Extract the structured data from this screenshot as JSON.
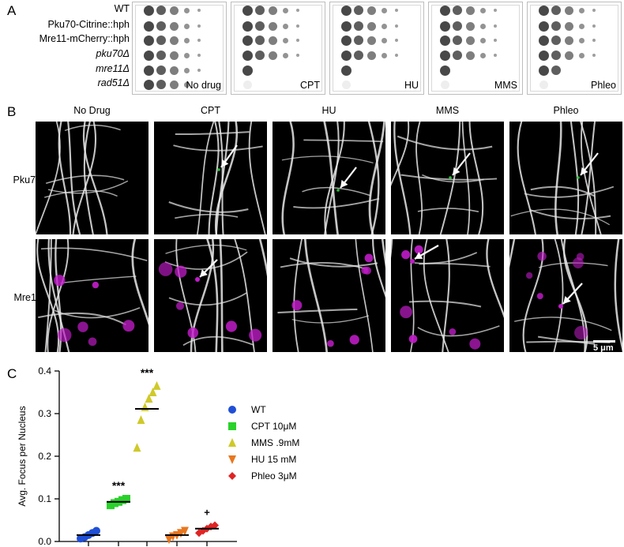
{
  "panels": {
    "a": "A",
    "b": "B",
    "c": "C"
  },
  "panel_a": {
    "strains": [
      {
        "label": "WT",
        "italic": false,
        "growth": [
          5,
          5,
          5,
          5,
          5
        ]
      },
      {
        "label": "Pku70-Citrine::hph",
        "italic": false,
        "growth": [
          5,
          5,
          5,
          5,
          5
        ]
      },
      {
        "label": "Mre11-mCherry::hph",
        "italic": false,
        "growth": [
          5,
          5,
          5,
          5,
          5
        ]
      },
      {
        "label": "pku70Δ",
        "italic": true,
        "growth": [
          5,
          5,
          5,
          5,
          5
        ]
      },
      {
        "label": "mre11Δ",
        "italic": true,
        "growth": [
          5,
          1,
          1,
          1,
          2
        ]
      },
      {
        "label": "rad51Δ",
        "italic": true,
        "growth": [
          4,
          0,
          0,
          0,
          0
        ]
      }
    ],
    "plates": [
      "No drug",
      "CPT",
      "HU",
      "MMS",
      "Phleo"
    ]
  },
  "panel_b": {
    "columns": [
      "No Drug",
      "CPT",
      "HU",
      "MMS",
      "Phleo"
    ],
    "rows": [
      "Pku70",
      "Mre11"
    ],
    "scale_bar": "5 μm",
    "colors": {
      "membrane": "#e8e8e8",
      "pku70": "#22c033",
      "mre11": "#c01cc8",
      "arrow": "#ffffff"
    }
  },
  "chart_data": {
    "type": "scatter",
    "ylabel": "Avg. Focus per Nucleus",
    "xlabel": "",
    "ylim": [
      0,
      0.4
    ],
    "yticks": [
      "0.0",
      "0.1",
      "0.2",
      "0.3",
      "0.4"
    ],
    "series": [
      {
        "name": "WT",
        "color": "#1f4fd6",
        "marker": "circle",
        "values": [
          0.007,
          0.01,
          0.015,
          0.02,
          0.025
        ],
        "mean": 0.015,
        "annotation": ""
      },
      {
        "name": "CPT 10μM",
        "color": "#2ad12a",
        "marker": "square",
        "values": [
          0.085,
          0.09,
          0.093,
          0.097,
          0.1
        ],
        "mean": 0.093,
        "annotation": "***"
      },
      {
        "name": "MMS .9mM",
        "color": "#cfc92a",
        "marker": "triangle-up",
        "values": [
          0.22,
          0.285,
          0.315,
          0.335,
          0.35,
          0.365
        ],
        "mean": 0.311,
        "annotation": "***"
      },
      {
        "name": "HU 15 mM",
        "color": "#e8771f",
        "marker": "triangle-down",
        "values": [
          0.005,
          0.012,
          0.015,
          0.02,
          0.025
        ],
        "mean": 0.015,
        "annotation": ""
      },
      {
        "name": "Phleo 3μM",
        "color": "#e02424",
        "marker": "diamond",
        "values": [
          0.02,
          0.025,
          0.03,
          0.035,
          0.038
        ],
        "mean": 0.03,
        "annotation": "+"
      }
    ]
  }
}
